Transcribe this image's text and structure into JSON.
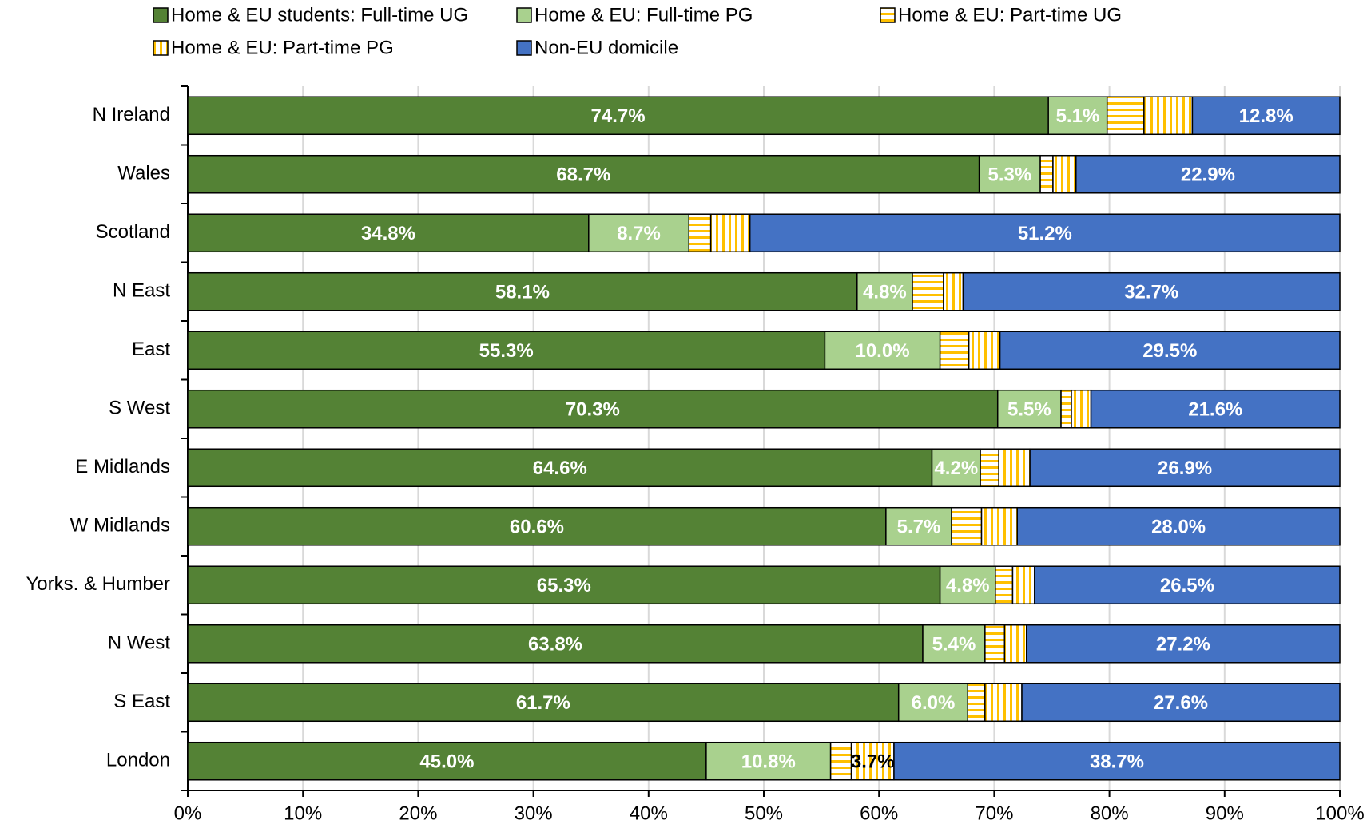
{
  "chart_data": {
    "type": "stacked-barh",
    "categories": [
      "N Ireland",
      "Wales",
      "Scotland",
      "N East",
      "East",
      "S West",
      "E Midlands",
      "W Midlands",
      "Yorks. & Humber",
      "N West",
      "S East",
      "London"
    ],
    "series": [
      {
        "name": "Home & EU students: Full-time UG",
        "color": "#548235",
        "label_color": "#ffffff",
        "values": [
          74.7,
          68.7,
          34.8,
          58.1,
          55.3,
          70.3,
          64.6,
          60.6,
          65.3,
          63.8,
          61.7,
          45.0
        ],
        "value_labels": [
          "74.7%",
          "68.7%",
          "34.8%",
          "58.1%",
          "55.3%",
          "70.3%",
          "64.6%",
          "60.6%",
          "65.3%",
          "63.8%",
          "61.7%",
          "45.0%"
        ]
      },
      {
        "name": "Home & EU: Full-time PG",
        "color": "#a9d18e",
        "label_color": "#ffffff",
        "values": [
          5.1,
          5.3,
          8.7,
          4.8,
          10.0,
          5.5,
          4.2,
          5.7,
          4.8,
          5.4,
          6.0,
          10.8
        ],
        "value_labels": [
          "5.1%",
          "5.3%",
          "8.7%",
          "4.8%",
          "10.0%",
          "5.5%",
          "4.2%",
          "5.7%",
          "4.8%",
          "5.4%",
          "6.0%",
          "10.8%"
        ]
      },
      {
        "name": "Home & EU: Part-time UG",
        "color": "#ffc000",
        "pattern": "horizontal",
        "label_color": "#000000",
        "values": [
          3.2,
          1.1,
          1.9,
          2.7,
          2.5,
          0.9,
          1.6,
          2.6,
          1.5,
          1.7,
          1.5,
          1.8
        ],
        "value_labels": [
          null,
          null,
          null,
          null,
          null,
          null,
          null,
          null,
          null,
          null,
          null,
          null
        ]
      },
      {
        "name": "Home & EU: Part-time PG",
        "color": "#ffc000",
        "pattern": "vertical",
        "label_color": "#000000",
        "values": [
          4.2,
          2.0,
          3.4,
          1.7,
          2.7,
          1.7,
          2.7,
          3.1,
          1.9,
          1.9,
          3.2,
          3.7
        ],
        "value_labels": [
          null,
          null,
          null,
          null,
          null,
          null,
          null,
          null,
          null,
          null,
          null,
          "3.7%"
        ]
      },
      {
        "name": "Non-EU domicile",
        "color": "#4472c4",
        "label_color": "#ffffff",
        "values": [
          12.8,
          22.9,
          51.2,
          32.7,
          29.5,
          21.6,
          26.9,
          28.0,
          26.5,
          27.2,
          27.6,
          38.7
        ],
        "value_labels": [
          "12.8%",
          "22.9%",
          "51.2%",
          "32.7%",
          "29.5%",
          "21.6%",
          "26.9%",
          "28.0%",
          "26.5%",
          "27.2%",
          "27.6%",
          "38.7%"
        ]
      }
    ],
    "xlim": [
      0,
      100
    ],
    "xticks": [
      {
        "value": 0,
        "label": "0%"
      },
      {
        "value": 10,
        "label": "10%"
      },
      {
        "value": 20,
        "label": "20%"
      },
      {
        "value": 30,
        "label": "30%"
      },
      {
        "value": 40,
        "label": "40%"
      },
      {
        "value": 50,
        "label": "50%"
      },
      {
        "value": 60,
        "label": "60%"
      },
      {
        "value": 70,
        "label": "70%"
      },
      {
        "value": 80,
        "label": "80%"
      },
      {
        "value": 90,
        "label": "90%"
      },
      {
        "value": 100,
        "label": "100%"
      }
    ],
    "grid": true,
    "legend": "top"
  }
}
